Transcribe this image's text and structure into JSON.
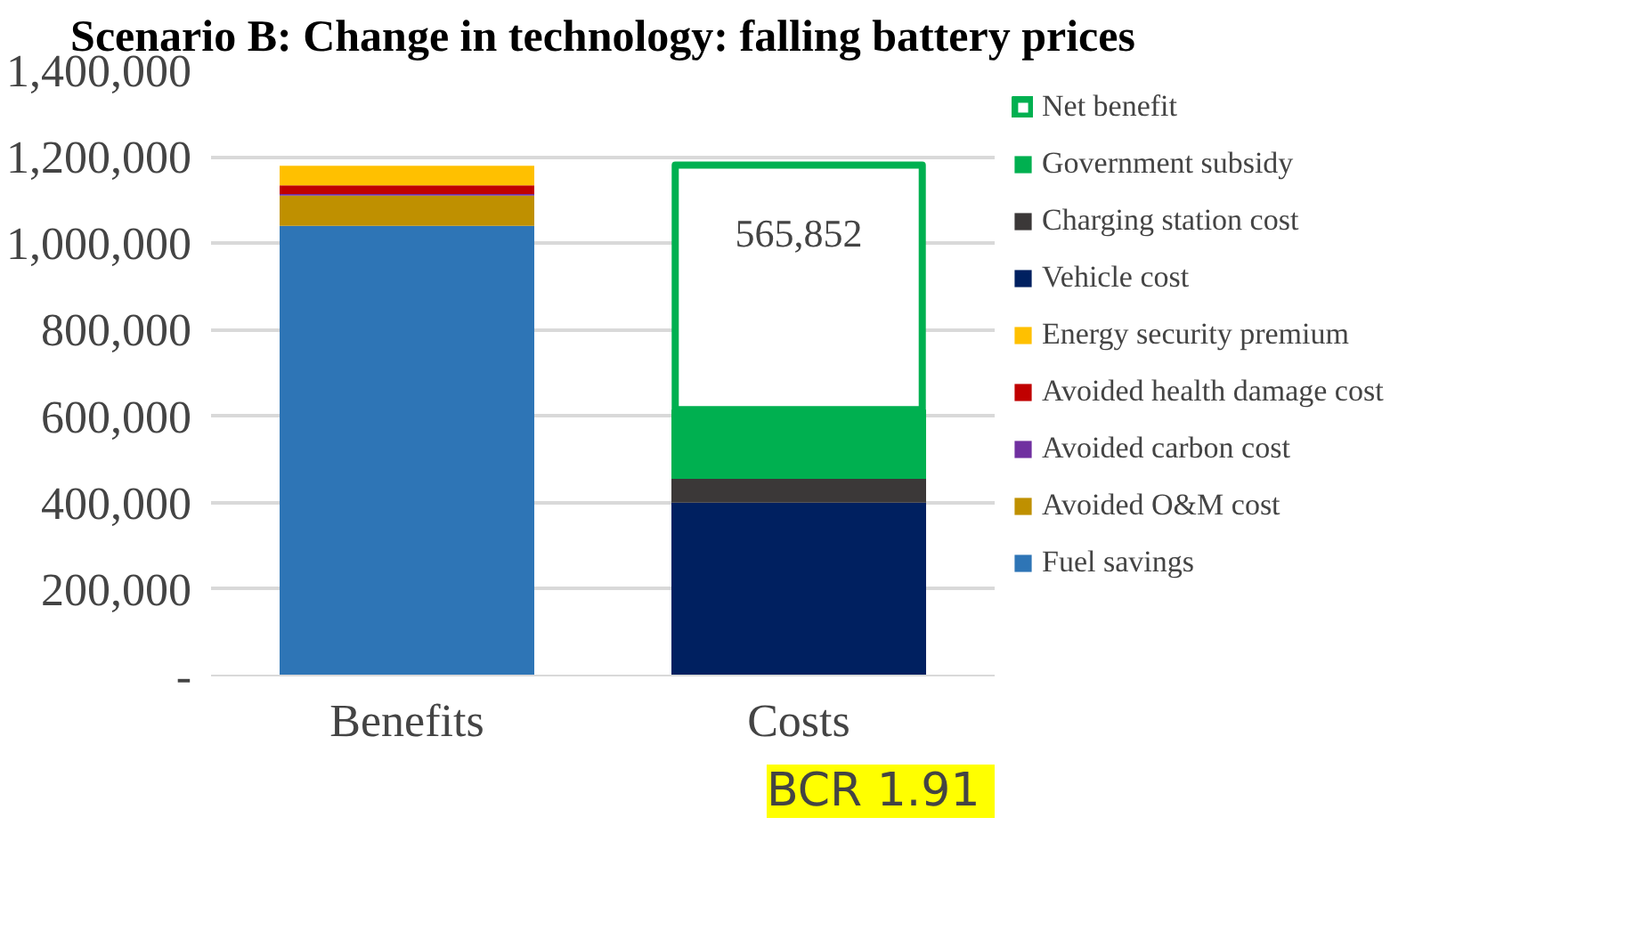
{
  "chart_data": {
    "type": "bar",
    "stacked": true,
    "title": "Scenario B: Change in technology: falling battery prices",
    "categories": [
      "Benefits",
      "Costs"
    ],
    "series": [
      {
        "name": "Fuel savings",
        "color": "#2e75b6",
        "values": [
          1040000,
          null
        ]
      },
      {
        "name": "Avoided O&M cost",
        "color": "#bf9000",
        "values": [
          70000,
          null
        ]
      },
      {
        "name": "Avoided carbon cost",
        "color": "#7030a0",
        "values": [
          4000,
          null
        ]
      },
      {
        "name": "Avoided health damage cost",
        "color": "#c00000",
        "values": [
          20000,
          null
        ]
      },
      {
        "name": "Energy security premium",
        "color": "#ffc000",
        "values": [
          45000,
          null
        ]
      },
      {
        "name": "Vehicle cost",
        "color": "#002060",
        "values": [
          null,
          400000
        ]
      },
      {
        "name": "Charging station cost",
        "color": "#3b3838",
        "values": [
          null,
          55000
        ]
      },
      {
        "name": "Government subsidy",
        "color": "#00b050",
        "values": [
          null,
          160000
        ]
      },
      {
        "name": "Net benefit",
        "color": "#00b050",
        "values": [
          null,
          565852
        ],
        "value_labels": [
          null,
          "565,852"
        ]
      }
    ],
    "ylim": [
      0,
      1400000
    ],
    "yticks": [
      {
        "value": 0,
        "label": "-"
      },
      {
        "value": 200000,
        "label": "200,000"
      },
      {
        "value": 400000,
        "label": "400,000"
      },
      {
        "value": 600000,
        "label": "600,000"
      },
      {
        "value": 800000,
        "label": "800,000"
      },
      {
        "value": 1000000,
        "label": "1,000,000"
      },
      {
        "value": 1200000,
        "label": "1,200,000"
      },
      {
        "value": 1400000,
        "label": "1,400,000"
      }
    ],
    "grid": "y",
    "legend": "right",
    "annotations": [
      "BCR  1.91"
    ]
  }
}
